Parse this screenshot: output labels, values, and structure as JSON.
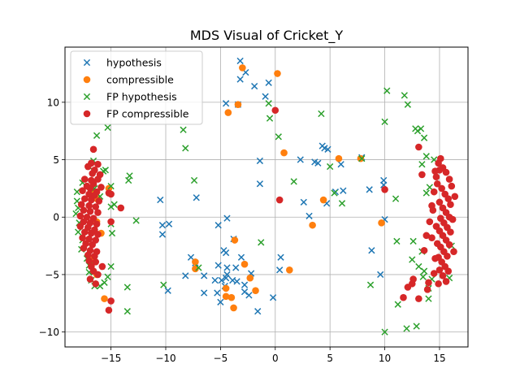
{
  "chart_data": {
    "type": "scatter",
    "title": "MDS Visual of Cricket_Y",
    "xlabel": "",
    "ylabel": "",
    "xlim": [
      -19.2,
      17.6
    ],
    "ylim": [
      -11.3,
      14.8
    ],
    "xticks": [
      -15,
      -10,
      -5,
      0,
      5,
      10,
      15
    ],
    "yticks": [
      -10,
      -5,
      0,
      5,
      10
    ],
    "grid": true,
    "legend_position": "top-left",
    "series": [
      {
        "name": "hypothesis",
        "marker": "x",
        "color": "#1f77b4",
        "points": [
          [
            -3.2,
            13.6
          ],
          [
            -3.2,
            12.0
          ],
          [
            -2.7,
            12.6
          ],
          [
            -1.9,
            11.4
          ],
          [
            -0.6,
            11.7
          ],
          [
            -0.9,
            10.5
          ],
          [
            -4.5,
            9.9
          ],
          [
            -3.4,
            9.8
          ],
          [
            -1.4,
            4.9
          ],
          [
            -1.4,
            2.9
          ],
          [
            -10.5,
            1.5
          ],
          [
            -7.2,
            1.7
          ],
          [
            -10.3,
            -0.7
          ],
          [
            -10.3,
            -1.5
          ],
          [
            -9.7,
            -0.6
          ],
          [
            -5.2,
            -0.7
          ],
          [
            -4.4,
            -0.1
          ],
          [
            -3.8,
            -1.9
          ],
          [
            -4.7,
            -2.9
          ],
          [
            -4.5,
            -3.1
          ],
          [
            -7.7,
            -3.5
          ],
          [
            -7.3,
            -4.0
          ],
          [
            -5.2,
            -4.2
          ],
          [
            -3.1,
            -3.5
          ],
          [
            -3.6,
            -4.4
          ],
          [
            -4.4,
            -4.4
          ],
          [
            -4.4,
            -5.0
          ],
          [
            -2.2,
            -4.9
          ],
          [
            -8.2,
            -5.1
          ],
          [
            -6.5,
            -5.1
          ],
          [
            -5.5,
            -5.5
          ],
          [
            -4.9,
            -5.5
          ],
          [
            -4.5,
            -5.3
          ],
          [
            -3.9,
            -5.5
          ],
          [
            -3.5,
            -5.6
          ],
          [
            -2.8,
            -5.9
          ],
          [
            -2.8,
            -6.5
          ],
          [
            -2.4,
            -6.8
          ],
          [
            -4.6,
            -6.0
          ],
          [
            -5.3,
            -6.6
          ],
          [
            -6.5,
            -6.6
          ],
          [
            -9.8,
            -6.4
          ],
          [
            -5.0,
            -7.4
          ],
          [
            -1.6,
            -8.2
          ],
          [
            -0.2,
            -7.0
          ],
          [
            0.5,
            -3.5
          ],
          [
            0.4,
            -4.6
          ],
          [
            2.3,
            5.0
          ],
          [
            3.6,
            4.8
          ],
          [
            3.9,
            4.7
          ],
          [
            4.3,
            6.2
          ],
          [
            4.5,
            6.0
          ],
          [
            4.8,
            5.9
          ],
          [
            5.5,
            2.2
          ],
          [
            6.0,
            4.6
          ],
          [
            6.2,
            2.3
          ],
          [
            4.7,
            1.2
          ],
          [
            2.6,
            1.3
          ],
          [
            3.1,
            0.1
          ],
          [
            7.9,
            5.2
          ],
          [
            8.6,
            2.4
          ],
          [
            9.9,
            3.2
          ],
          [
            10.0,
            -0.2
          ],
          [
            8.8,
            -2.9
          ],
          [
            9.6,
            -5.0
          ],
          [
            9.9,
            2.8
          ]
        ]
      },
      {
        "name": "compressible",
        "marker": "o",
        "color": "#ff7f0e",
        "points": [
          [
            0.2,
            12.5
          ],
          [
            -3.0,
            13.0
          ],
          [
            -3.4,
            9.8
          ],
          [
            -4.3,
            9.1
          ],
          [
            0.8,
            5.6
          ],
          [
            5.8,
            5.1
          ],
          [
            7.8,
            5.1
          ],
          [
            4.4,
            1.5
          ],
          [
            9.7,
            -0.5
          ],
          [
            3.4,
            -0.7
          ],
          [
            -3.7,
            -2.0
          ],
          [
            -7.3,
            -3.9
          ],
          [
            -7.3,
            -4.5
          ],
          [
            -2.8,
            -4.1
          ],
          [
            -2.3,
            -5.3
          ],
          [
            -4.5,
            -6.2
          ],
          [
            -4.5,
            -6.9
          ],
          [
            -4.0,
            -7.0
          ],
          [
            -3.8,
            -7.9
          ],
          [
            -1.8,
            -6.4
          ],
          [
            1.3,
            -4.6
          ],
          [
            -15.6,
            -7.1
          ],
          [
            -16.3,
            -5.0
          ],
          [
            -16.7,
            -3.6
          ],
          [
            -16.8,
            -4.2
          ],
          [
            -15.9,
            -1.4
          ],
          [
            -16.3,
            -0.4
          ],
          [
            -16.5,
            2.2
          ],
          [
            -16.3,
            1.6
          ],
          [
            -15.2,
            2.5
          ]
        ]
      },
      {
        "name": "FP hypothesis",
        "marker": "x",
        "color": "#2ca02c",
        "points": [
          [
            -15.3,
            7.8
          ],
          [
            -16.3,
            7.1
          ],
          [
            -16.6,
            4.9
          ],
          [
            -17.0,
            4.4
          ],
          [
            -17.6,
            3.0
          ],
          [
            -18.1,
            2.2
          ],
          [
            -18.1,
            1.4
          ],
          [
            -18.0,
            0.8
          ],
          [
            -18.2,
            0.3
          ],
          [
            -17.9,
            -0.5
          ],
          [
            -18.0,
            -1.3
          ],
          [
            -17.6,
            -2.0
          ],
          [
            -17.7,
            -2.8
          ],
          [
            -17.2,
            -3.6
          ],
          [
            -17.0,
            -4.2
          ],
          [
            -17.0,
            -4.8
          ],
          [
            -16.8,
            -5.5
          ],
          [
            -16.5,
            -6.0
          ],
          [
            -16.0,
            -6.0
          ],
          [
            -15.6,
            -5.7
          ],
          [
            -15.3,
            -5.2
          ],
          [
            -15.0,
            -4.3
          ],
          [
            -14.9,
            -1.4
          ],
          [
            -15.0,
            -0.6
          ],
          [
            -15.0,
            0.9
          ],
          [
            -14.7,
            1.1
          ],
          [
            -15.0,
            2.7
          ],
          [
            -16.0,
            1.8
          ],
          [
            -16.5,
            2.5
          ],
          [
            -15.7,
            4.0
          ],
          [
            -15.5,
            4.1
          ],
          [
            -13.4,
            3.2
          ],
          [
            -13.3,
            3.6
          ],
          [
            -12.7,
            -0.3
          ],
          [
            -13.5,
            -6.1
          ],
          [
            -13.5,
            -8.2
          ],
          [
            -10.2,
            -5.9
          ],
          [
            -8.4,
            7.6
          ],
          [
            -8.2,
            6.0
          ],
          [
            -7.4,
            3.2
          ],
          [
            -7.0,
            -4.4
          ],
          [
            -1.3,
            -2.2
          ],
          [
            -0.5,
            8.6
          ],
          [
            -0.6,
            9.9
          ],
          [
            0.3,
            7.0
          ],
          [
            1.7,
            3.1
          ],
          [
            4.2,
            9.0
          ],
          [
            5.0,
            4.4
          ],
          [
            5.4,
            2.1
          ],
          [
            6.1,
            1.2
          ],
          [
            7.9,
            5.1
          ],
          [
            8.7,
            -5.9
          ],
          [
            10.0,
            8.3
          ],
          [
            10.2,
            11.0
          ],
          [
            10.0,
            -10.0
          ],
          [
            11.0,
            1.6
          ],
          [
            11.1,
            -2.1
          ],
          [
            11.2,
            -7.6
          ],
          [
            11.8,
            10.6
          ],
          [
            12.1,
            9.8
          ],
          [
            12.6,
            -2.1
          ],
          [
            12.5,
            -3.7
          ],
          [
            12.9,
            -9.5
          ],
          [
            12.8,
            7.7
          ],
          [
            13.0,
            7.5
          ],
          [
            13.3,
            7.7
          ],
          [
            13.6,
            6.9
          ],
          [
            13.4,
            4.6
          ],
          [
            13.8,
            5.3
          ],
          [
            14.1,
            2.6
          ],
          [
            13.8,
            2.1
          ],
          [
            13.4,
            -3.0
          ],
          [
            13.1,
            -4.3
          ],
          [
            13.5,
            -5.2
          ],
          [
            14.0,
            -6.2
          ],
          [
            14.0,
            -7.1
          ],
          [
            13.6,
            -4.7
          ],
          [
            14.5,
            5.0
          ],
          [
            14.3,
            -5.4
          ],
          [
            15.9,
            -5.3
          ],
          [
            16.1,
            -2.5
          ],
          [
            12.0,
            -9.7
          ]
        ]
      },
      {
        "name": "FP compressible",
        "marker": "o",
        "color": "#d62728",
        "points": [
          [
            -16.6,
            5.9
          ],
          [
            -16.8,
            4.7
          ],
          [
            -16.2,
            4.6
          ],
          [
            -16.5,
            4.1
          ],
          [
            -17.1,
            4.4
          ],
          [
            -16.7,
            3.8
          ],
          [
            -16.0,
            3.7
          ],
          [
            -17.4,
            3.3
          ],
          [
            -16.8,
            3.2
          ],
          [
            -16.2,
            3.3
          ],
          [
            -16.6,
            2.9
          ],
          [
            -17.2,
            2.7
          ],
          [
            -15.9,
            2.6
          ],
          [
            -16.9,
            2.5
          ],
          [
            -17.6,
            2.3
          ],
          [
            -16.3,
            2.2
          ],
          [
            -17.0,
            2.0
          ],
          [
            -16.5,
            1.9
          ],
          [
            -17.4,
            1.6
          ],
          [
            -16.8,
            1.5
          ],
          [
            -16.1,
            1.4
          ],
          [
            -17.7,
            1.1
          ],
          [
            -17.0,
            1.0
          ],
          [
            -16.4,
            0.9
          ],
          [
            -17.5,
            0.6
          ],
          [
            -16.9,
            0.5
          ],
          [
            -16.2,
            0.4
          ],
          [
            -17.8,
            0.1
          ],
          [
            -17.2,
            0.0
          ],
          [
            -16.6,
            -0.1
          ],
          [
            -17.5,
            -0.4
          ],
          [
            -16.9,
            -0.5
          ],
          [
            -16.3,
            -0.6
          ],
          [
            -17.8,
            -0.8
          ],
          [
            -17.1,
            -0.9
          ],
          [
            -16.5,
            -1.1
          ],
          [
            -17.4,
            -1.3
          ],
          [
            -16.8,
            -1.4
          ],
          [
            -16.2,
            -1.5
          ],
          [
            -17.6,
            -1.8
          ],
          [
            -17.0,
            -1.9
          ],
          [
            -16.4,
            -2.0
          ],
          [
            -17.3,
            -2.3
          ],
          [
            -16.7,
            -2.4
          ],
          [
            -17.5,
            -2.7
          ],
          [
            -16.9,
            -2.9
          ],
          [
            -16.3,
            -3.0
          ],
          [
            -17.1,
            -3.3
          ],
          [
            -16.5,
            -3.4
          ],
          [
            -17.0,
            -3.8
          ],
          [
            -16.4,
            -3.9
          ],
          [
            -16.8,
            -4.3
          ],
          [
            -16.6,
            -4.7
          ],
          [
            -16.2,
            -5.0
          ],
          [
            -16.9,
            -5.4
          ],
          [
            -16.4,
            -5.8
          ],
          [
            -15.8,
            -4.3
          ],
          [
            -15.2,
            2.1
          ],
          [
            -15.0,
            2.0
          ],
          [
            -14.1,
            0.8
          ],
          [
            -15.0,
            -0.4
          ],
          [
            -15.0,
            -7.3
          ],
          [
            -15.2,
            -8.1
          ],
          [
            0.0,
            9.3
          ],
          [
            0.4,
            1.5
          ],
          [
            10.0,
            2.4
          ],
          [
            11.7,
            -7.0
          ],
          [
            12.1,
            -6.1
          ],
          [
            12.5,
            -5.8
          ],
          [
            12.6,
            -5.4
          ],
          [
            13.1,
            -7.1
          ],
          [
            13.4,
            3.7
          ],
          [
            13.1,
            6.1
          ],
          [
            13.9,
            -6.3
          ],
          [
            14.0,
            -5.7
          ],
          [
            13.6,
            -2.9
          ],
          [
            13.8,
            -1.6
          ],
          [
            14.1,
            -0.4
          ],
          [
            14.3,
            1.0
          ],
          [
            14.5,
            2.2
          ],
          [
            14.7,
            3.5
          ],
          [
            14.9,
            4.7
          ],
          [
            15.1,
            5.1
          ],
          [
            15.3,
            4.3
          ],
          [
            15.6,
            3.9
          ],
          [
            15.9,
            3.3
          ],
          [
            16.1,
            2.7
          ],
          [
            14.8,
            2.9
          ],
          [
            15.2,
            2.5
          ],
          [
            15.5,
            2.0
          ],
          [
            15.8,
            1.6
          ],
          [
            16.0,
            1.1
          ],
          [
            15.0,
            1.3
          ],
          [
            15.3,
            0.8
          ],
          [
            15.6,
            0.4
          ],
          [
            15.9,
            0.0
          ],
          [
            16.2,
            -0.2
          ],
          [
            15.1,
            -0.1
          ],
          [
            15.4,
            -0.5
          ],
          [
            15.7,
            -0.9
          ],
          [
            16.0,
            -1.3
          ],
          [
            15.0,
            -1.2
          ],
          [
            15.3,
            -1.6
          ],
          [
            15.6,
            -2.0
          ],
          [
            15.9,
            -2.4
          ],
          [
            15.1,
            -2.6
          ],
          [
            15.4,
            -3.0
          ],
          [
            15.7,
            -3.4
          ],
          [
            14.9,
            -3.5
          ],
          [
            15.2,
            -3.9
          ],
          [
            15.5,
            -4.3
          ],
          [
            15.8,
            -4.7
          ],
          [
            15.0,
            -4.6
          ],
          [
            15.3,
            -5.1
          ],
          [
            15.6,
            -5.6
          ],
          [
            14.9,
            -5.8
          ],
          [
            14.5,
            -4.9
          ],
          [
            14.6,
            -3.6
          ],
          [
            14.8,
            -2.3
          ],
          [
            14.7,
            -0.8
          ],
          [
            14.4,
            0.6
          ],
          [
            14.3,
            -1.8
          ],
          [
            16.4,
            1.8
          ],
          [
            16.3,
            -3.0
          ],
          [
            15.0,
            4.1
          ],
          [
            14.6,
            4.0
          ]
        ]
      }
    ]
  }
}
